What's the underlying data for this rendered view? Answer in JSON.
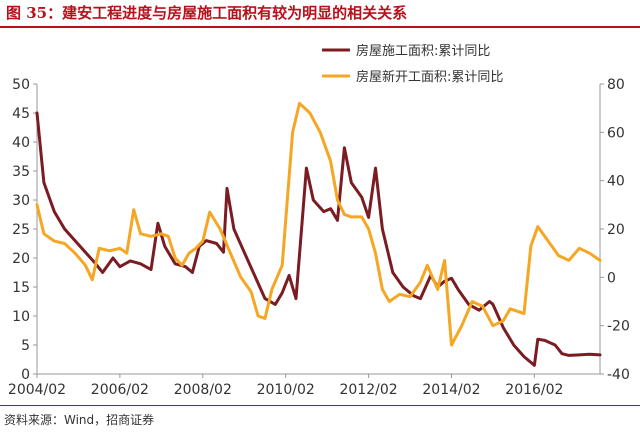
{
  "title": "图 35：建安工程进度与房屋施工面积有较为明显的相关关系",
  "source": "资料来源：Wind，招商证券",
  "chart_data": {
    "type": "line",
    "title": "图 35：建安工程进度与房屋施工面积有较为明显的相关关系",
    "x_range": [
      "2004/02",
      "2017/09"
    ],
    "x_ticks": [
      "2004/02",
      "2006/02",
      "2008/02",
      "2010/02",
      "2012/02",
      "2014/02",
      "2016/02"
    ],
    "y_left": {
      "range": [
        0,
        50
      ],
      "ticks": [
        "0",
        "5",
        "10",
        "15",
        "20",
        "25",
        "30",
        "35",
        "40",
        "45",
        "50"
      ]
    },
    "y_right": {
      "range": [
        -40,
        80
      ],
      "ticks": [
        "-40",
        "-20",
        "0",
        "20",
        "40",
        "60",
        "80"
      ]
    },
    "grid": false,
    "legend": "top-right",
    "series": [
      {
        "name": "房屋施工面积:累计同比",
        "axis": "left",
        "color": "#7b1c22",
        "points": [
          [
            "2004/02",
            45
          ],
          [
            "2004/04",
            33
          ],
          [
            "2004/07",
            28
          ],
          [
            "2004/10",
            25
          ],
          [
            "2005/01",
            23
          ],
          [
            "2005/04",
            21
          ],
          [
            "2005/07",
            19
          ],
          [
            "2005/09",
            17.5
          ],
          [
            "2005/12",
            20
          ],
          [
            "2006/02",
            18.5
          ],
          [
            "2006/05",
            19.5
          ],
          [
            "2006/08",
            19
          ],
          [
            "2006/11",
            18
          ],
          [
            "2007/01",
            26
          ],
          [
            "2007/03",
            22
          ],
          [
            "2007/06",
            19
          ],
          [
            "2007/09",
            18.5
          ],
          [
            "2007/11",
            17.5
          ],
          [
            "2008/01",
            22
          ],
          [
            "2008/03",
            23
          ],
          [
            "2008/06",
            22.5
          ],
          [
            "2008/08",
            21
          ],
          [
            "2008/09",
            32
          ],
          [
            "2008/11",
            25
          ],
          [
            "2009/02",
            21
          ],
          [
            "2009/05",
            17
          ],
          [
            "2009/08",
            13
          ],
          [
            "2009/11",
            12
          ],
          [
            "2010/01",
            14
          ],
          [
            "2010/03",
            17
          ],
          [
            "2010/05",
            13
          ],
          [
            "2010/08",
            35.5
          ],
          [
            "2010/10",
            30
          ],
          [
            "2011/01",
            28
          ],
          [
            "2011/03",
            28.5
          ],
          [
            "2011/05",
            26.5
          ],
          [
            "2011/07",
            39
          ],
          [
            "2011/09",
            33
          ],
          [
            "2011/12",
            30.5
          ],
          [
            "2012/02",
            27
          ],
          [
            "2012/04",
            35.5
          ],
          [
            "2012/06",
            25
          ],
          [
            "2012/09",
            17.5
          ],
          [
            "2012/12",
            15
          ],
          [
            "2013/03",
            13.5
          ],
          [
            "2013/05",
            13
          ],
          [
            "2013/08",
            17
          ],
          [
            "2013/10",
            15
          ],
          [
            "2013/12",
            16
          ],
          [
            "2014/02",
            16.5
          ],
          [
            "2014/04",
            14.5
          ],
          [
            "2014/07",
            12
          ],
          [
            "2014/10",
            11
          ],
          [
            "2015/01",
            12.5
          ],
          [
            "2015/02",
            12
          ],
          [
            "2015/05",
            8
          ],
          [
            "2015/08",
            5
          ],
          [
            "2015/11",
            3
          ],
          [
            "2016/01",
            2
          ],
          [
            "2016/02",
            1.5
          ],
          [
            "2016/03",
            6
          ],
          [
            "2016/05",
            5.8
          ],
          [
            "2016/08",
            5
          ],
          [
            "2016/10",
            3.5
          ],
          [
            "2016/12",
            3.2
          ],
          [
            "2017/03",
            3.3
          ],
          [
            "2017/06",
            3.4
          ],
          [
            "2017/09",
            3.3
          ]
        ]
      },
      {
        "name": "房屋新开工面积:累计同比",
        "axis": "right",
        "color": "#f5a623",
        "points": [
          [
            "2004/02",
            30
          ],
          [
            "2004/04",
            18
          ],
          [
            "2004/07",
            15
          ],
          [
            "2004/10",
            14
          ],
          [
            "2005/01",
            10
          ],
          [
            "2005/04",
            5
          ],
          [
            "2005/06",
            -1
          ],
          [
            "2005/08",
            12
          ],
          [
            "2005/11",
            11
          ],
          [
            "2006/02",
            12
          ],
          [
            "2006/04",
            10
          ],
          [
            "2006/06",
            28
          ],
          [
            "2006/08",
            18
          ],
          [
            "2006/11",
            17
          ],
          [
            "2007/02",
            18
          ],
          [
            "2007/04",
            17
          ],
          [
            "2007/06",
            8
          ],
          [
            "2007/08",
            5
          ],
          [
            "2007/10",
            10
          ],
          [
            "2007/12",
            12
          ],
          [
            "2008/02",
            15
          ],
          [
            "2008/04",
            27
          ],
          [
            "2008/07",
            20
          ],
          [
            "2008/10",
            10
          ],
          [
            "2009/01",
            0
          ],
          [
            "2009/04",
            -6
          ],
          [
            "2009/06",
            -16
          ],
          [
            "2009/08",
            -17
          ],
          [
            "2009/10",
            -5
          ],
          [
            "2010/01",
            5
          ],
          [
            "2010/04",
            60
          ],
          [
            "2010/06",
            72
          ],
          [
            "2010/09",
            68
          ],
          [
            "2010/12",
            60
          ],
          [
            "2011/03",
            48
          ],
          [
            "2011/05",
            32
          ],
          [
            "2011/07",
            26
          ],
          [
            "2011/09",
            25
          ],
          [
            "2011/12",
            25
          ],
          [
            "2012/02",
            20
          ],
          [
            "2012/04",
            10
          ],
          [
            "2012/06",
            -5
          ],
          [
            "2012/08",
            -10
          ],
          [
            "2012/11",
            -7
          ],
          [
            "2013/02",
            -8
          ],
          [
            "2013/05",
            -2
          ],
          [
            "2013/07",
            5
          ],
          [
            "2013/10",
            -5
          ],
          [
            "2013/12",
            7
          ],
          [
            "2014/02",
            -28
          ],
          [
            "2014/05",
            -20
          ],
          [
            "2014/08",
            -10
          ],
          [
            "2014/11",
            -12
          ],
          [
            "2015/02",
            -20
          ],
          [
            "2015/05",
            -18
          ],
          [
            "2015/07",
            -13
          ],
          [
            "2015/09",
            -14
          ],
          [
            "2015/11",
            -15
          ],
          [
            "2016/01",
            13
          ],
          [
            "2016/03",
            21
          ],
          [
            "2016/06",
            15
          ],
          [
            "2016/09",
            9
          ],
          [
            "2016/12",
            7
          ],
          [
            "2017/03",
            12
          ],
          [
            "2017/06",
            10
          ],
          [
            "2017/09",
            7
          ]
        ]
      }
    ]
  }
}
